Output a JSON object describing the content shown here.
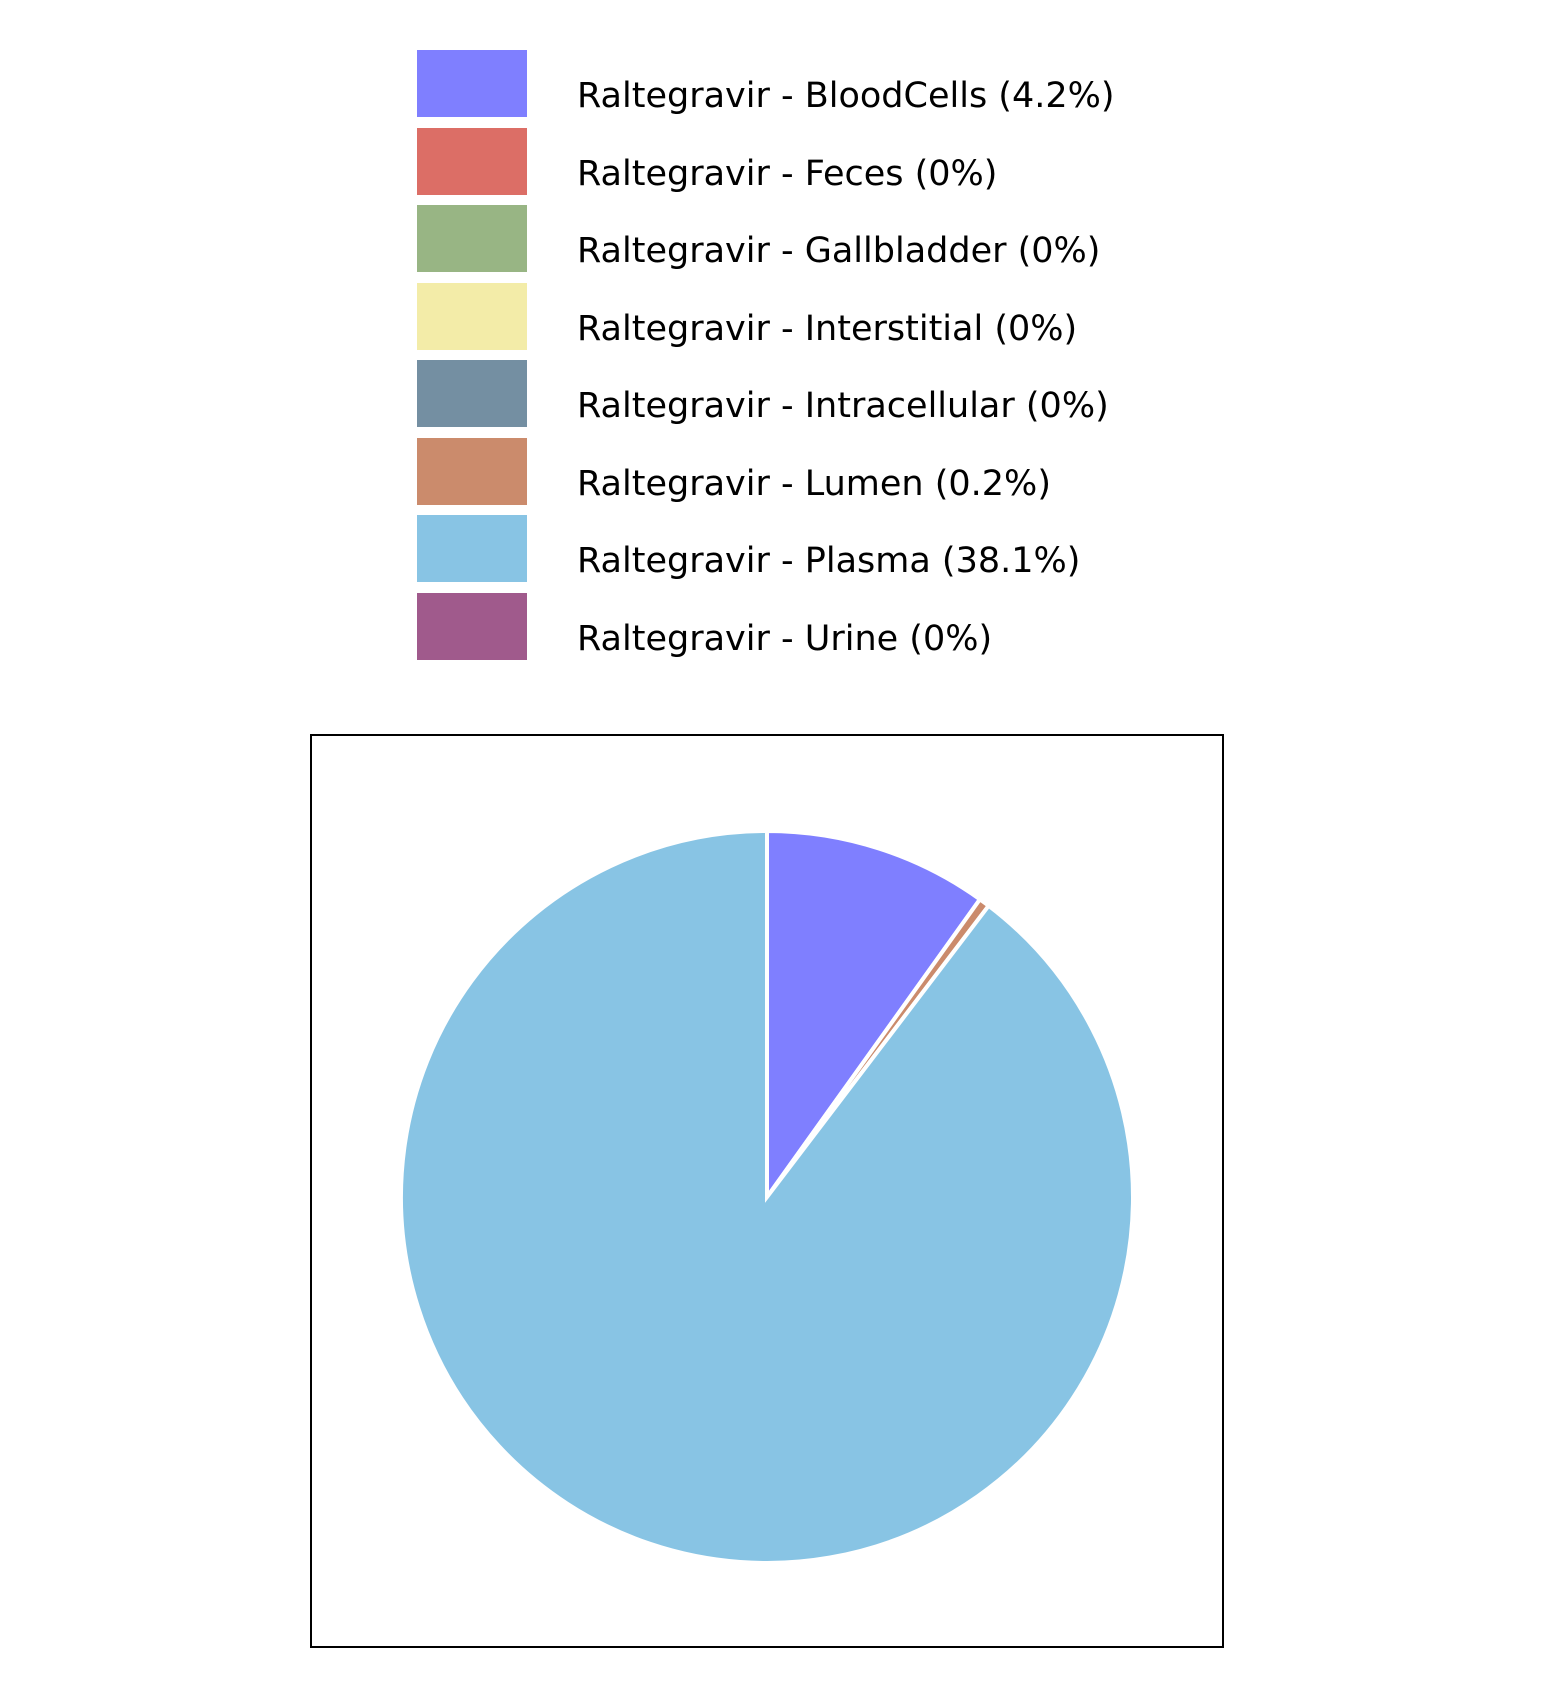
{
  "chart_data": {
    "type": "pie",
    "title": "",
    "legend_position": "top",
    "slices": [
      {
        "name": "Raltegravir - BloodCells",
        "label": "Raltegravir - BloodCells (4.2%)",
        "value": 4.2,
        "color": "#7f7fff"
      },
      {
        "name": "Raltegravir - Feces",
        "label": "Raltegravir - Feces (0%)",
        "value": 0,
        "color": "#dc6e66"
      },
      {
        "name": "Raltegravir - Gallbladder",
        "label": "Raltegravir - Gallbladder (0%)",
        "value": 0,
        "color": "#98b584"
      },
      {
        "name": "Raltegravir - Interstitial",
        "label": "Raltegravir - Interstitial (0%)",
        "value": 0,
        "color": "#f3eca8"
      },
      {
        "name": "Raltegravir - Intracellular",
        "label": "Raltegravir - Intracellular (0%)",
        "value": 0,
        "color": "#748fa2"
      },
      {
        "name": "Raltegravir - Lumen",
        "label": "Raltegravir - Lumen (0.2%)",
        "value": 0.2,
        "color": "#cb8b6c"
      },
      {
        "name": "Raltegravir - Plasma",
        "label": "Raltegravir - Plasma (38.1%)",
        "value": 38.1,
        "color": "#88c4e4"
      },
      {
        "name": "Raltegravir - Urine",
        "label": "Raltegravir - Urine (0%)",
        "value": 0,
        "color": "#a05a8c"
      }
    ]
  }
}
